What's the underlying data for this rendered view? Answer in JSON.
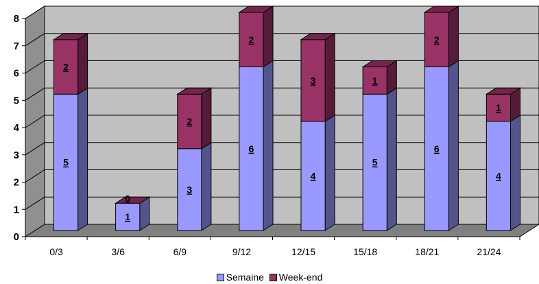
{
  "chart_data": {
    "type": "bar",
    "stacked": true,
    "categories": [
      "0/3",
      "3/6",
      "6/9",
      "9/12",
      "12/15",
      "15/18",
      "18/21",
      "21/24"
    ],
    "series": [
      {
        "name": "Semaine",
        "values": [
          5,
          1,
          3,
          6,
          4,
          5,
          6,
          4
        ],
        "color": "#9999ff"
      },
      {
        "name": "Week-end",
        "values": [
          2,
          0,
          2,
          2,
          3,
          1,
          2,
          1
        ],
        "color": "#993366"
      }
    ],
    "ylim": [
      0,
      8
    ],
    "yticks": [
      0,
      1,
      2,
      3,
      4,
      5,
      6,
      7,
      8
    ],
    "grid": true,
    "legend": "bottom"
  }
}
